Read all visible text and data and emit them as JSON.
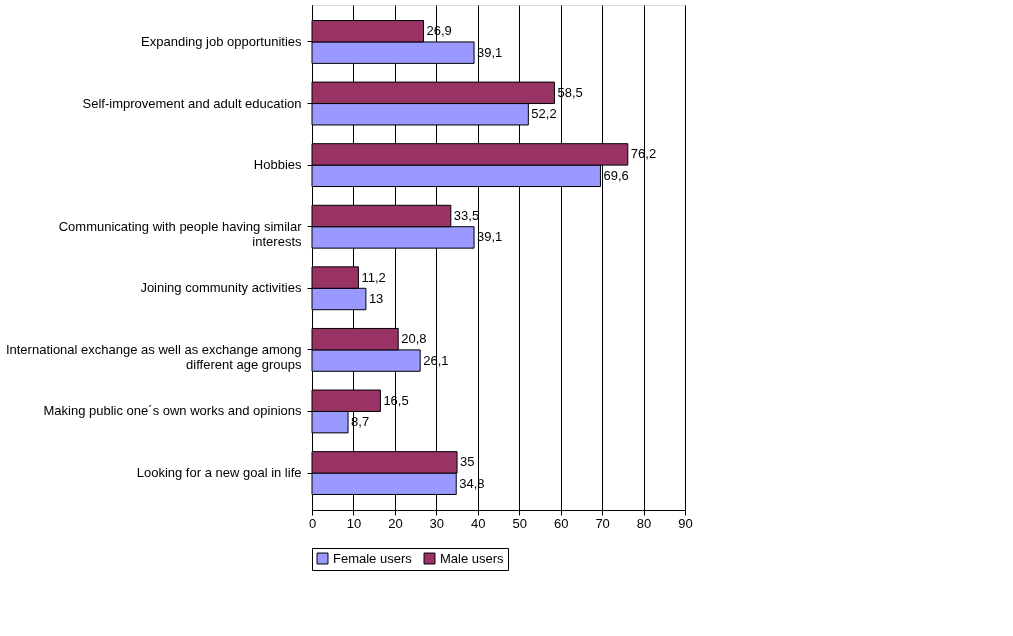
{
  "chart_data": {
    "type": "bar",
    "orientation": "horizontal",
    "categories": [
      "Expanding job opportunities",
      "Self-improvement and adult education",
      "Hobbies",
      "Communicating with people having similar interests",
      "Joining community activities",
      "International exchange as well as exchange among different age groups",
      "Making public one´s own works and opinions",
      "Looking for a new goal in life"
    ],
    "series": [
      {
        "name": "Female users",
        "color": "#9999ff",
        "values": [
          39.1,
          52.2,
          69.6,
          39.1,
          13,
          26.1,
          8.7,
          34.8
        ],
        "value_labels": [
          "39,1",
          "52,2",
          "69,6",
          "39,1",
          "13",
          "26,1",
          "8,7",
          "34,8"
        ]
      },
      {
        "name": "Male users",
        "color": "#993366",
        "values": [
          26.9,
          58.5,
          76.2,
          33.5,
          11.2,
          20.8,
          16.5,
          35
        ],
        "value_labels": [
          "26,9",
          "58,5",
          "76,2",
          "33,5",
          "11,2",
          "20,8",
          "16,5",
          "35"
        ]
      }
    ],
    "xlim": [
      0,
      90
    ],
    "xticks": [
      0,
      10,
      20,
      30,
      40,
      50,
      60,
      70,
      80,
      90
    ],
    "grid": "x",
    "legend": "bottom"
  }
}
